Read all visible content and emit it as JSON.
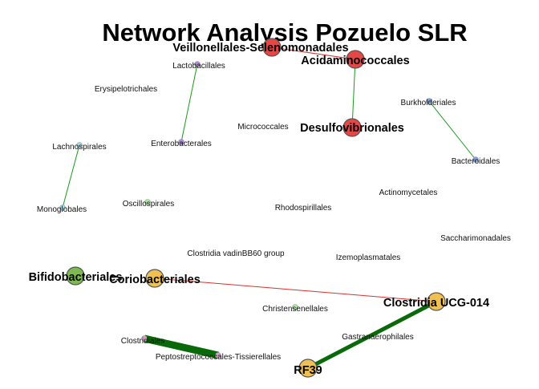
{
  "title": "Network Analysis Pozuelo SLR",
  "nodes": [
    {
      "id": "veillonellales",
      "label": "Veillonellales-Selenomonadales",
      "color": "#e84545",
      "size": "large"
    },
    {
      "id": "acidaminococcales",
      "label": "Acidaminococcales",
      "color": "#e84545",
      "size": "large"
    },
    {
      "id": "desulfovibrionales",
      "label": "Desulfovibrionales",
      "color": "#e84545",
      "size": "large"
    },
    {
      "id": "lactobacillales",
      "label": "Lactobacillales",
      "color": "#b088e0",
      "size": "small"
    },
    {
      "id": "enterobacterales",
      "label": "Enterobacterales",
      "color": "#b088e0",
      "size": "small"
    },
    {
      "id": "erysipelotrichales",
      "label": "Erysipelotrichales",
      "color": "",
      "size": "none"
    },
    {
      "id": "micrococcales",
      "label": "Micrococcales",
      "color": "",
      "size": "none"
    },
    {
      "id": "burkholderiales",
      "label": "Burkholderiales",
      "color": "#7fa0e0",
      "size": "small"
    },
    {
      "id": "bacteroidales",
      "label": "Bacteroidales",
      "color": "#7fa0e0",
      "size": "small"
    },
    {
      "id": "lachnospirales",
      "label": "Lachnospirales",
      "color": "#a8d8e0",
      "size": "small"
    },
    {
      "id": "monoglobales",
      "label": "Monoglobales",
      "color": "#a8d8e0",
      "size": "small"
    },
    {
      "id": "oscillospirales",
      "label": "Oscillospirales",
      "color": "#a8e8a0",
      "size": "small"
    },
    {
      "id": "rhodospirillales",
      "label": "Rhodospirillales",
      "color": "",
      "size": "none"
    },
    {
      "id": "actinomycetales",
      "label": "Actinomycetales",
      "color": "",
      "size": "none"
    },
    {
      "id": "saccharimonadales",
      "label": "Saccharimonadales",
      "color": "",
      "size": "none"
    },
    {
      "id": "clostridia_vadin",
      "label": "Clostridia vadinBB60 group",
      "color": "",
      "size": "none"
    },
    {
      "id": "izemoplasmatales",
      "label": "Izemoplasmatales",
      "color": "",
      "size": "none"
    },
    {
      "id": "bifidobacteriales",
      "label": "Bifidobacteriales",
      "color": "#7dbb50",
      "size": "large"
    },
    {
      "id": "coriobacteriales",
      "label": "Coriobacteriales",
      "color": "#f0c050",
      "size": "large"
    },
    {
      "id": "clostridia_ucg014",
      "label": "Clostridia UCG-014",
      "color": "#f0c050",
      "size": "large"
    },
    {
      "id": "christensenellales",
      "label": "Christensenellales",
      "color": "#a8e8a0",
      "size": "small"
    },
    {
      "id": "gastranaerophilales",
      "label": "Gastranaerophilales",
      "color": "",
      "size": "none"
    },
    {
      "id": "clostridiales",
      "label": "Clostridiales",
      "color": "#d8a0c8",
      "size": "small"
    },
    {
      "id": "peptostreptococcales",
      "label": "Peptostreptococcales-Tissierellales",
      "color": "#d8a0c8",
      "size": "small"
    },
    {
      "id": "rf39",
      "label": "RF39",
      "color": "#f0c050",
      "size": "large"
    }
  ],
  "edges": [
    {
      "source": "veillonellales",
      "target": "acidaminococcales",
      "color": "#d83030",
      "weight": "thin"
    },
    {
      "source": "acidaminococcales",
      "target": "desulfovibrionales",
      "color": "#1a9a1a",
      "weight": "thin"
    },
    {
      "source": "lactobacillales",
      "target": "enterobacterales",
      "color": "#1a9a1a",
      "weight": "thin"
    },
    {
      "source": "burkholderiales",
      "target": "bacteroidales",
      "color": "#1a9a1a",
      "weight": "thin"
    },
    {
      "source": "lachnospirales",
      "target": "monoglobales",
      "color": "#1a9a1a",
      "weight": "thin"
    },
    {
      "source": "coriobacteriales",
      "target": "clostridia_ucg014",
      "color": "#d83030",
      "weight": "thin"
    },
    {
      "source": "clostridia_ucg014",
      "target": "rf39",
      "color": "#0a6a0a",
      "weight": "thick"
    },
    {
      "source": "clostridiales",
      "target": "peptostreptococcales",
      "color": "#0a6a0a",
      "weight": "heavy"
    }
  ]
}
